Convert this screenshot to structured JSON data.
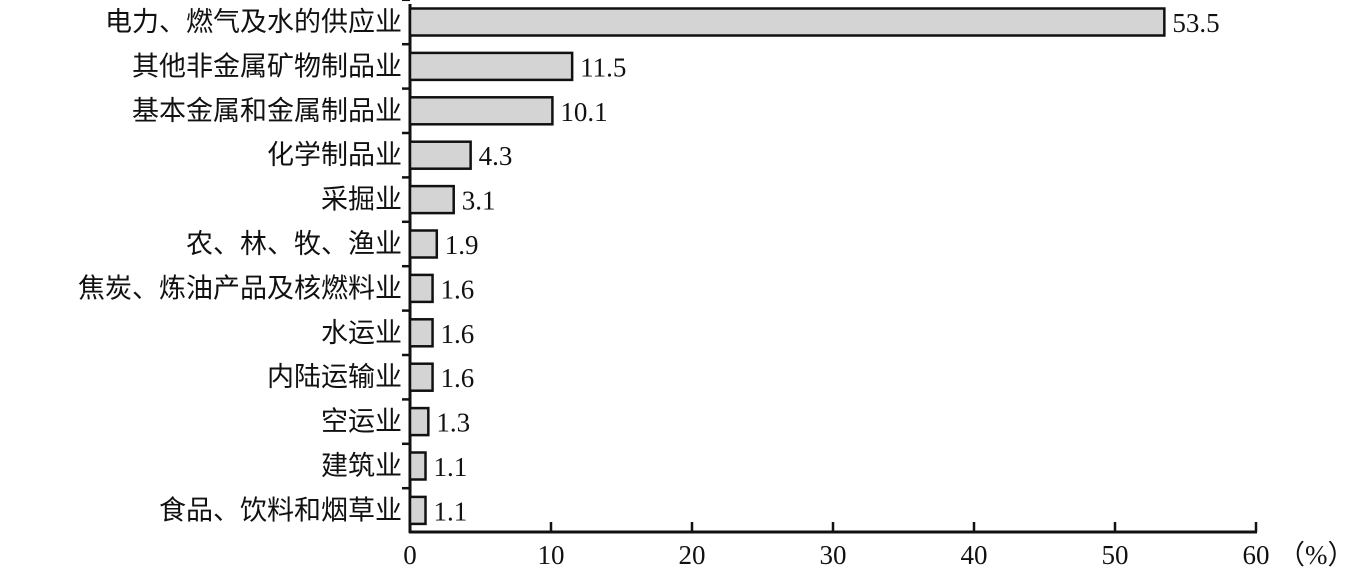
{
  "chart_data": {
    "type": "bar",
    "orientation": "horizontal",
    "categories": [
      "电力、燃气及水的供应业",
      "其他非金属矿物制品业",
      "基本金属和金属制品业",
      "化学制品业",
      "采掘业",
      "农、林、牧、渔业",
      "焦炭、炼油产品及核燃料业",
      "水运业",
      "内陆运输业",
      "空运业",
      "建筑业",
      "食品、饮料和烟草业"
    ],
    "values": [
      53.5,
      11.5,
      10.1,
      4.3,
      3.1,
      1.9,
      1.6,
      1.6,
      1.6,
      1.3,
      1.1,
      1.1
    ],
    "value_labels": [
      "53.5",
      "11.5",
      "10.1",
      "4.3",
      "3.1",
      "1.9",
      "1.6",
      "1.6",
      "1.6",
      "1.3",
      "1.1",
      "1.1"
    ],
    "xlim": [
      0,
      60
    ],
    "xticks": [
      0,
      10,
      20,
      30,
      40,
      50,
      60
    ],
    "xtick_labels": [
      "0",
      "10",
      "20",
      "30",
      "40",
      "50",
      "60"
    ],
    "xunit": "（%）",
    "grid": false,
    "colors": {
      "bar_fill": "#d4d4d4",
      "bar_stroke": "#111111"
    }
  }
}
